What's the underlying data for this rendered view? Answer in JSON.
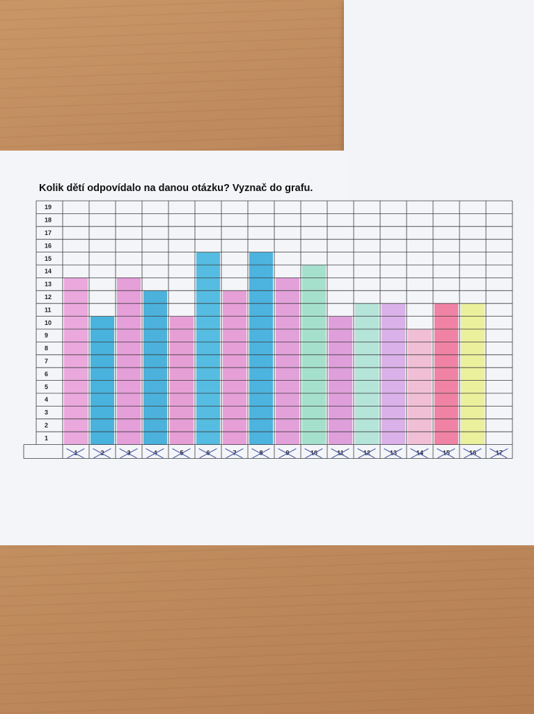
{
  "title": "Kolik dětí odpovídalo na danou otázku? Vyznač do grafu.",
  "chart_data": {
    "type": "bar",
    "title": "Kolik dětí odpovídalo na danou otázku? Vyznač do grafu.",
    "xlabel": "",
    "ylabel": "",
    "ylim": [
      0,
      19
    ],
    "grid": true,
    "y_ticks": [
      "1",
      "2",
      "3",
      "4",
      "5",
      "6",
      "7",
      "8",
      "9",
      "10",
      "11",
      "12",
      "13",
      "14",
      "15",
      "16",
      "17",
      "18",
      "19"
    ],
    "categories": [
      "1",
      "2",
      "3",
      "4",
      "5",
      "6",
      "7",
      "8",
      "9",
      "10",
      "11",
      "12",
      "13",
      "14",
      "15",
      "16",
      "17"
    ],
    "values": [
      13,
      10,
      13,
      12,
      10,
      15,
      12,
      15,
      13,
      14,
      10,
      11,
      11,
      9,
      11,
      11,
      0
    ],
    "bar_colors": [
      "#e79ad8",
      "#2aa6d8",
      "#e28fd4",
      "#2ea4d6",
      "#e38fcf",
      "#39b1dd",
      "#e38fd1",
      "#2fa7da",
      "#df92d5",
      "#97dcc6",
      "#d98fd6",
      "#a9e1d2",
      "#d6a5e6",
      "#eeb5cf",
      "#ef6f96",
      "#e7ee8c",
      "#f4f5f9"
    ]
  }
}
